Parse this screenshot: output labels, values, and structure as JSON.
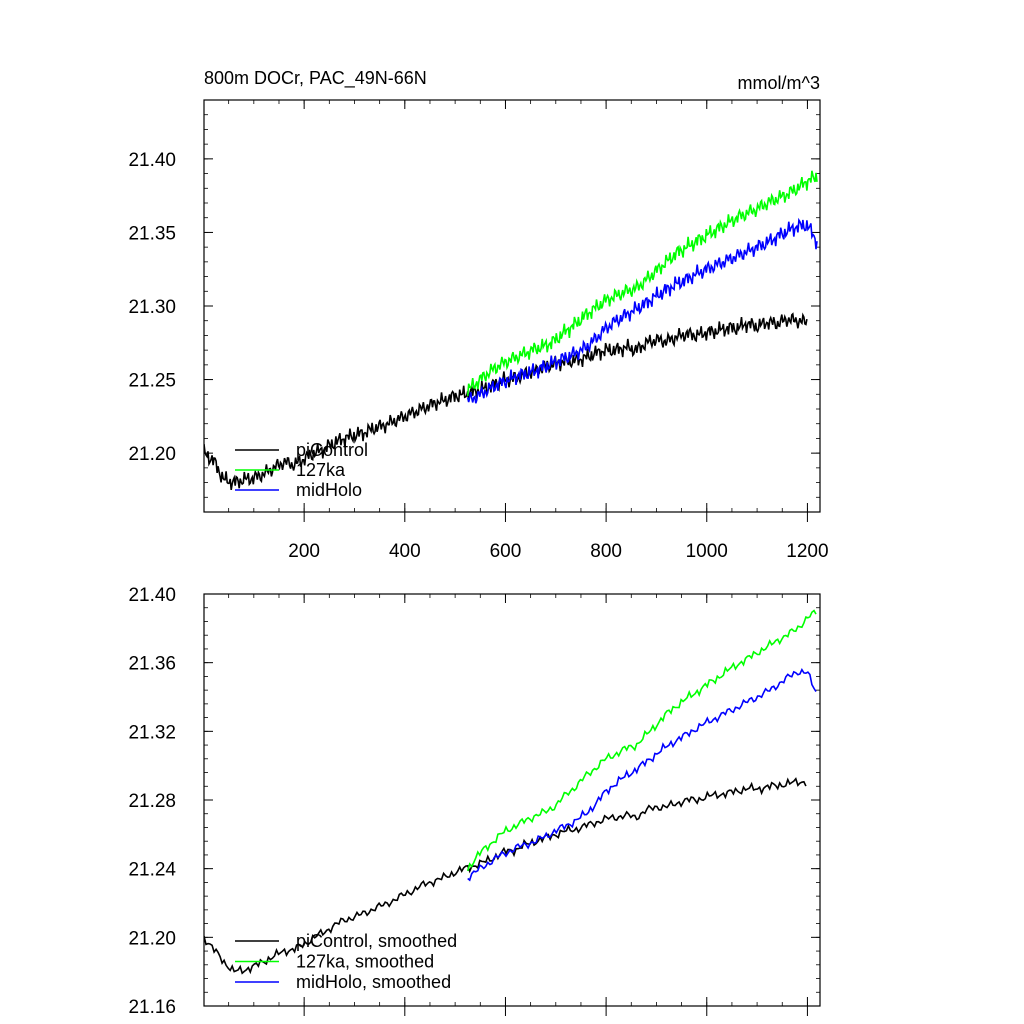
{
  "chart_data": [
    {
      "type": "line",
      "title": "800m DOCr, PAC_49N-66N",
      "units": "mmol/m^3",
      "xlim": [
        1,
        1225
      ],
      "ylim": [
        21.16,
        21.44
      ],
      "xticks": [
        200,
        400,
        600,
        800,
        1000,
        1200
      ],
      "xtick_labels": [
        "200",
        "400",
        "600",
        "800",
        "1000",
        "1200"
      ],
      "yticks": [
        21.2,
        21.25,
        21.3,
        21.35,
        21.4
      ],
      "ytick_labels": [
        "21.20",
        "21.25",
        "21.30",
        "21.35",
        "21.40"
      ],
      "grid": false,
      "legend_position": "bottom-left",
      "series": [
        {
          "name": "piControl",
          "color": "#000000",
          "x": [
            1,
            20,
            40,
            60,
            80,
            100,
            120,
            140,
            160,
            180,
            200,
            220,
            240,
            260,
            280,
            300,
            320,
            340,
            360,
            380,
            400,
            420,
            440,
            460,
            480,
            500,
            520,
            540,
            560,
            580,
            600,
            620,
            640,
            660,
            680,
            700,
            720,
            740,
            760,
            780,
            800,
            820,
            840,
            860,
            880,
            900,
            920,
            940,
            960,
            980,
            1000,
            1020,
            1040,
            1060,
            1080,
            1100,
            1120,
            1140,
            1160,
            1180,
            1200
          ],
          "y": [
            21.2,
            21.195,
            21.182,
            21.18,
            21.182,
            21.183,
            21.186,
            21.19,
            21.194,
            21.192,
            21.196,
            21.2,
            21.203,
            21.207,
            21.21,
            21.212,
            21.214,
            21.217,
            21.219,
            21.222,
            21.225,
            21.228,
            21.231,
            21.234,
            21.236,
            21.239,
            21.24,
            21.242,
            21.244,
            21.247,
            21.25,
            21.251,
            21.254,
            21.256,
            21.259,
            21.261,
            21.262,
            21.263,
            21.265,
            21.268,
            21.27,
            21.27,
            21.272,
            21.27,
            21.275,
            21.277,
            21.276,
            21.279,
            21.281,
            21.28,
            21.282,
            21.283,
            21.285,
            21.285,
            21.288,
            21.286,
            21.289,
            21.288,
            21.291,
            21.29,
            21.289
          ]
        },
        {
          "name": "127ka",
          "color": "#00ff00",
          "x": [
            525,
            540,
            560,
            580,
            600,
            620,
            640,
            660,
            680,
            700,
            720,
            740,
            760,
            780,
            800,
            820,
            840,
            860,
            880,
            900,
            920,
            940,
            960,
            980,
            1000,
            1020,
            1040,
            1060,
            1080,
            1100,
            1120,
            1140,
            1160,
            1180,
            1200,
            1220
          ],
          "y": [
            21.243,
            21.247,
            21.253,
            21.258,
            21.262,
            21.265,
            21.268,
            21.271,
            21.273,
            21.277,
            21.283,
            21.288,
            21.294,
            21.299,
            21.304,
            21.307,
            21.31,
            21.312,
            21.318,
            21.324,
            21.33,
            21.336,
            21.34,
            21.344,
            21.348,
            21.352,
            21.356,
            21.36,
            21.363,
            21.366,
            21.37,
            21.373,
            21.376,
            21.38,
            21.385,
            21.388
          ]
        },
        {
          "name": "midHolo",
          "color": "#0000ff",
          "x": [
            525,
            540,
            560,
            580,
            600,
            620,
            640,
            660,
            680,
            700,
            720,
            740,
            760,
            780,
            800,
            820,
            840,
            860,
            880,
            900,
            920,
            940,
            960,
            980,
            1000,
            1020,
            1040,
            1060,
            1080,
            1100,
            1120,
            1140,
            1160,
            1180,
            1200,
            1220
          ],
          "y": [
            21.236,
            21.238,
            21.242,
            21.246,
            21.249,
            21.252,
            21.254,
            21.256,
            21.259,
            21.262,
            21.265,
            21.268,
            21.272,
            21.278,
            21.285,
            21.29,
            21.294,
            21.298,
            21.302,
            21.307,
            21.311,
            21.315,
            21.318,
            21.322,
            21.325,
            21.328,
            21.331,
            21.334,
            21.337,
            21.34,
            21.343,
            21.347,
            21.351,
            21.354,
            21.355,
            21.343
          ]
        }
      ]
    },
    {
      "type": "line",
      "xlim": [
        1,
        1225
      ],
      "ylim": [
        21.16,
        21.4
      ],
      "xticks": [
        200,
        400,
        600,
        800,
        1000,
        1200
      ],
      "xtick_labels": [],
      "yticks": [
        21.16,
        21.2,
        21.24,
        21.28,
        21.32,
        21.36,
        21.4
      ],
      "ytick_labels": [
        "21.16",
        "21.20",
        "21.24",
        "21.28",
        "21.32",
        "21.36",
        "21.40"
      ],
      "grid": false,
      "legend_position": "bottom-left",
      "series": [
        {
          "name": "piControl, smoothed",
          "color": "#000000",
          "x": [
            1,
            20,
            40,
            60,
            80,
            100,
            120,
            140,
            160,
            180,
            200,
            220,
            240,
            260,
            280,
            300,
            320,
            340,
            360,
            380,
            400,
            420,
            440,
            460,
            480,
            500,
            520,
            540,
            560,
            580,
            600,
            620,
            640,
            660,
            680,
            700,
            720,
            740,
            760,
            780,
            800,
            820,
            840,
            860,
            880,
            900,
            920,
            940,
            960,
            980,
            1000,
            1020,
            1040,
            1060,
            1080,
            1100,
            1120,
            1140,
            1160,
            1180,
            1200
          ],
          "y": [
            21.2,
            21.193,
            21.186,
            21.18,
            21.181,
            21.183,
            21.186,
            21.189,
            21.192,
            21.193,
            21.196,
            21.2,
            21.203,
            21.207,
            21.21,
            21.212,
            21.214,
            21.217,
            21.219,
            21.222,
            21.225,
            21.228,
            21.231,
            21.233,
            21.235,
            21.238,
            21.24,
            21.242,
            21.244,
            21.247,
            21.25,
            21.251,
            21.254,
            21.256,
            21.258,
            21.26,
            21.262,
            21.263,
            21.265,
            21.267,
            21.269,
            21.27,
            21.271,
            21.27,
            21.274,
            21.276,
            21.276,
            21.278,
            21.28,
            21.28,
            21.282,
            21.283,
            21.284,
            21.285,
            21.287,
            21.286,
            21.288,
            21.288,
            21.29,
            21.29,
            21.291
          ]
        },
        {
          "name": "127ka, smoothed",
          "color": "#00ff00",
          "x": [
            525,
            540,
            560,
            580,
            600,
            620,
            640,
            660,
            680,
            700,
            720,
            740,
            760,
            780,
            800,
            820,
            840,
            860,
            880,
            900,
            920,
            940,
            960,
            980,
            1000,
            1020,
            1040,
            1060,
            1080,
            1100,
            1120,
            1140,
            1160,
            1180,
            1200,
            1220
          ],
          "y": [
            21.24,
            21.246,
            21.252,
            21.257,
            21.262,
            21.265,
            21.268,
            21.271,
            21.273,
            21.277,
            21.283,
            21.288,
            21.294,
            21.299,
            21.304,
            21.307,
            21.31,
            21.312,
            21.318,
            21.324,
            21.33,
            21.335,
            21.339,
            21.343,
            21.347,
            21.351,
            21.355,
            21.359,
            21.362,
            21.366,
            21.369,
            21.373,
            21.376,
            21.38,
            21.386,
            21.39
          ]
        },
        {
          "name": "midHolo, smoothed",
          "color": "#0000ff",
          "x": [
            525,
            540,
            560,
            580,
            600,
            620,
            640,
            660,
            680,
            700,
            720,
            740,
            760,
            780,
            800,
            820,
            840,
            860,
            880,
            900,
            920,
            940,
            960,
            980,
            1000,
            1020,
            1040,
            1060,
            1080,
            1100,
            1120,
            1140,
            1160,
            1180,
            1200,
            1220
          ],
          "y": [
            21.235,
            21.238,
            21.242,
            21.246,
            21.249,
            21.252,
            21.254,
            21.256,
            21.259,
            21.262,
            21.265,
            21.268,
            21.272,
            21.278,
            21.285,
            21.29,
            21.294,
            21.298,
            21.302,
            21.307,
            21.311,
            21.315,
            21.318,
            21.322,
            21.325,
            21.328,
            21.331,
            21.334,
            21.337,
            21.34,
            21.343,
            21.347,
            21.351,
            21.355,
            21.354,
            21.341
          ]
        }
      ]
    }
  ]
}
